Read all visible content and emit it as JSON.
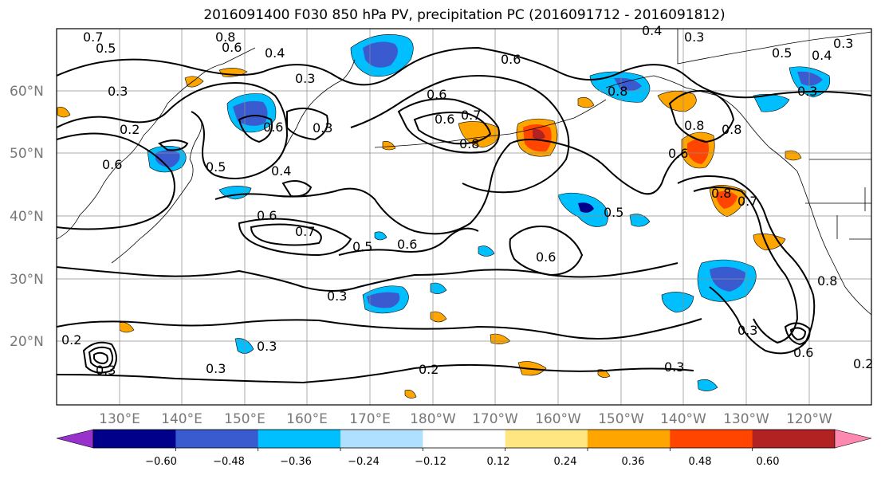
{
  "title": "2016091400 F030 850 hPa PV, precipitation PC (2016091712 - 2016091812)",
  "longitude_labels": [
    "130°E",
    "140°E",
    "150°E",
    "160°E",
    "170°E",
    "180°W",
    "170°W",
    "160°W",
    "150°W",
    "140°W",
    "130°W",
    "120°W"
  ],
  "latitude_labels": [
    "60°N",
    "50°N",
    "40°N",
    "30°N",
    "20°N"
  ],
  "colorbar": {
    "ticks": [
      "−0.60",
      "−0.48",
      "−0.36",
      "−0.24",
      "−0.12",
      "0.12",
      "0.24",
      "0.36",
      "0.48",
      "0.60"
    ],
    "colors": [
      "#9932cc",
      "#00008b",
      "#3a5bd0",
      "#00bfff",
      "#b0e0ff",
      "#ffffff",
      "#ffe680",
      "#ffa500",
      "#ff4500",
      "#b22222",
      "#ff88b0"
    ]
  },
  "contour_labels": [
    "0.7",
    "0.5",
    "0.8",
    "0.6",
    "0.4",
    "0.3",
    "0.3",
    "0.2",
    "0.6",
    "0.5",
    "0.6",
    "0.3",
    "0.7",
    "0.8",
    "0.6",
    "0.8",
    "0.8",
    "0.3",
    "0.4",
    "0.3",
    "0.6",
    "0.4",
    "0.5",
    "0.3",
    "0.5",
    "0.6",
    "0.7",
    "0.6",
    "0.6",
    "0.3",
    "0.3",
    "0.2",
    "0.3",
    "0.2",
    "0.3",
    "0.3",
    "0.6",
    "0.8",
    "0.2",
    "0.4",
    "0.6",
    "0.3",
    "0.8",
    "0.7",
    "0.8",
    "0.5",
    "0.6"
  ],
  "land_labels_colors": {
    "coast": "#000000",
    "grid": "#8c8c8c"
  }
}
